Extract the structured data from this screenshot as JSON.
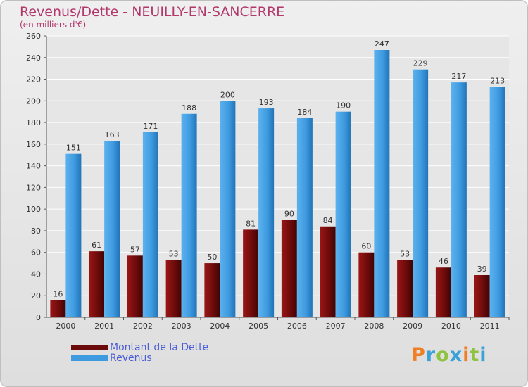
{
  "header": {
    "title": "Revenus/Dette - NEUILLY-EN-SANCERRE",
    "subtitle": "(en milliers d'€)"
  },
  "logo": {
    "letters": [
      "P",
      "r",
      "o",
      "x",
      "i",
      "t",
      "i"
    ],
    "colors": [
      "#f07e26",
      "#3aa0d8",
      "#8fc23f",
      "#3aa0d8",
      "#f07e26",
      "#8fc23f",
      "#3aa0d8"
    ]
  },
  "colors": {
    "dette": "#7a0c0c",
    "revenus": "#3f9be0",
    "axis_text": "#333333",
    "title": "#b3386a"
  },
  "chart_data": {
    "type": "bar",
    "title": "Revenus/Dette - NEUILLY-EN-SANCERRE",
    "subtitle": "(en milliers d'€)",
    "categories": [
      "2000",
      "2001",
      "2002",
      "2003",
      "2004",
      "2005",
      "2006",
      "2007",
      "2008",
      "2009",
      "2010",
      "2011"
    ],
    "series": [
      {
        "name": "Montant de la Dette",
        "values": [
          16,
          61,
          57,
          53,
          50,
          81,
          90,
          84,
          60,
          53,
          46,
          39
        ]
      },
      {
        "name": "Revenus",
        "values": [
          151,
          163,
          171,
          188,
          200,
          193,
          184,
          190,
          247,
          229,
          217,
          213
        ]
      }
    ],
    "ylim": [
      0,
      260
    ],
    "yticks": [
      0,
      20,
      40,
      60,
      80,
      100,
      120,
      140,
      160,
      180,
      200,
      220,
      240,
      260
    ],
    "grid": true,
    "legend_position": "bottom-left"
  }
}
